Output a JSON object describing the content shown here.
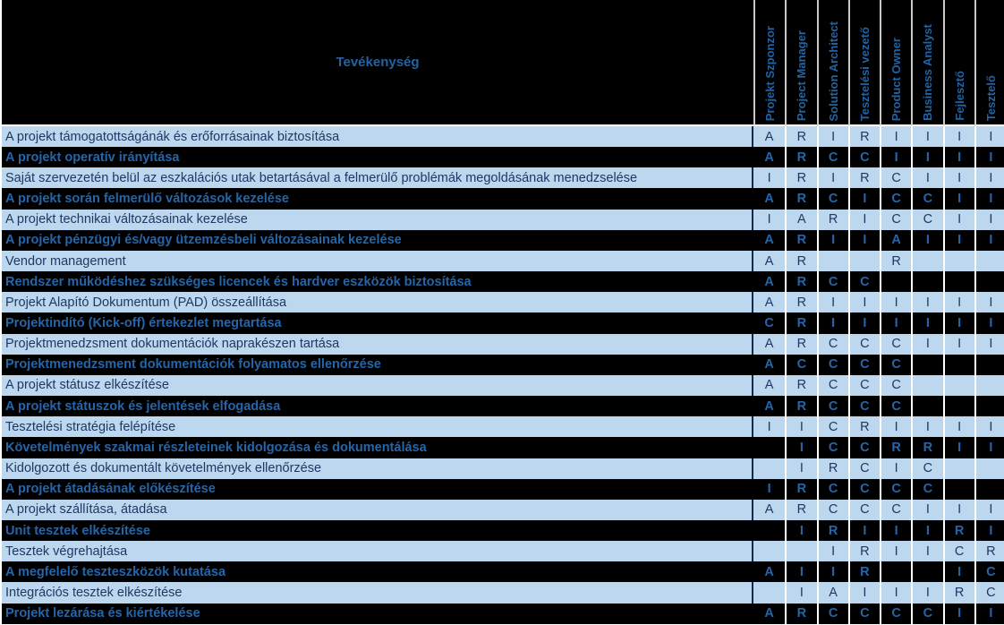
{
  "header": {
    "activity_label": "Tevékenység",
    "roles": [
      "Projekt Szponzor",
      "Project Manager",
      "Solution Architect",
      "Tesztelési vezető",
      "Product Owner",
      "Business Analyst",
      "Fejlesztő",
      "Tesztelő"
    ]
  },
  "raci_codes_used": [
    "A",
    "R",
    "C",
    "I"
  ],
  "colors": {
    "row_light_bg": "#BDD7EE",
    "row_dark_bg": "#000000",
    "text_on_light": "#1F3864",
    "text_on_dark": "#2565A8",
    "header_text": "#2163A4",
    "grid_line_body": "#FFFFFF",
    "grid_line_header": "#C9C9C9"
  },
  "matrix": {
    "rows": [
      {
        "activity": "A projekt támogatottságánák és erőforrásainak biztosítása",
        "values": [
          "A",
          "R",
          "I",
          "R",
          "I",
          "I",
          "I",
          "I"
        ]
      },
      {
        "activity": "A projekt operatív irányítása",
        "values": [
          "A",
          "R",
          "C",
          "C",
          "I",
          "I",
          "I",
          "I"
        ]
      },
      {
        "activity": "Saját szervezetén belül az eszkalációs utak betartásával a felmerülő problémák megoldásának menedzselése",
        "values": [
          "I",
          "R",
          "I",
          "R",
          "C",
          "I",
          "I",
          "I"
        ]
      },
      {
        "activity": "A projekt során felmerülő változások kezelése",
        "values": [
          "A",
          "R",
          "C",
          "I",
          "C",
          "C",
          "I",
          "I"
        ]
      },
      {
        "activity": "A projekt technikai változásainak kezelése",
        "values": [
          "I",
          "A",
          "R",
          "I",
          "C",
          "C",
          "I",
          "I"
        ]
      },
      {
        "activity": "A projekt pénzügyi és/vagy ützemzésbeli változásainak kezelése",
        "values": [
          "A",
          "R",
          "I",
          "I",
          "A",
          "I",
          "I",
          "I"
        ]
      },
      {
        "activity": "Vendor management",
        "values": [
          "A",
          "R",
          "",
          "",
          "R",
          "",
          "",
          ""
        ]
      },
      {
        "activity": "Rendszer működéshez szükséges licencek és hardver eszközök biztosítása",
        "values": [
          "A",
          "R",
          "C",
          "C",
          "",
          "",
          "",
          ""
        ]
      },
      {
        "activity": "Projekt Alapító Dokumentum (PAD) összeállítása",
        "values": [
          "A",
          "R",
          "I",
          "I",
          "I",
          "I",
          "I",
          "I"
        ]
      },
      {
        "activity": "Projektindító (Kick-off) értekezlet megtartása",
        "values": [
          "C",
          "R",
          "I",
          "I",
          "I",
          "I",
          "I",
          "I"
        ]
      },
      {
        "activity": "Projektmenedzsment dokumentációk naprakészen tartása",
        "values": [
          "A",
          "R",
          "C",
          "C",
          "C",
          "I",
          "I",
          "I"
        ]
      },
      {
        "activity": "Projektmenedzsment dokumentációk folyamatos ellenőrzése",
        "values": [
          "A",
          "C",
          "C",
          "C",
          "C",
          "",
          "",
          ""
        ]
      },
      {
        "activity": "A projekt státusz elkészítése",
        "values": [
          "A",
          "R",
          "C",
          "C",
          "C",
          "",
          "",
          ""
        ]
      },
      {
        "activity": "A projekt státuszok és jelentések elfogadása",
        "values": [
          "A",
          "R",
          "C",
          "C",
          "C",
          "",
          "",
          ""
        ]
      },
      {
        "activity": "Tesztelési stratégia felépítése",
        "values": [
          "I",
          "I",
          "C",
          "R",
          "I",
          "I",
          "I",
          "I"
        ]
      },
      {
        "activity": "Követelmények szakmai részleteinek kidolgozása és dokumentálása",
        "values": [
          "",
          "I",
          "C",
          "C",
          "R",
          "R",
          "I",
          "I"
        ]
      },
      {
        "activity": "Kidolgozott és dokumentált követelmények ellenőrzése",
        "values": [
          "",
          "I",
          "R",
          "C",
          "I",
          "C",
          "",
          ""
        ]
      },
      {
        "activity": "A projekt átadásának előkészítése",
        "values": [
          "I",
          "R",
          "C",
          "C",
          "C",
          "C",
          "",
          ""
        ]
      },
      {
        "activity": "A projekt szállítása, átadása",
        "values": [
          "A",
          "R",
          "C",
          "C",
          "C",
          "I",
          "I",
          "I"
        ]
      },
      {
        "activity": "Unit tesztek elkészítése",
        "values": [
          "",
          "I",
          "R",
          "I",
          "I",
          "I",
          "R",
          "I"
        ]
      },
      {
        "activity": "Tesztek végrehajtása",
        "values": [
          "",
          "",
          "I",
          "R",
          "I",
          "I",
          "C",
          "R"
        ]
      },
      {
        "activity": "A megfelelő teszteszközök kutatása",
        "values": [
          "A",
          "I",
          "I",
          "R",
          "",
          "",
          "I",
          "C"
        ]
      },
      {
        "activity": "Integrációs tesztek elkészítése",
        "values": [
          "",
          "I",
          "A",
          "I",
          "I",
          "I",
          "R",
          "C"
        ]
      },
      {
        "activity": "Projekt lezárása és kiértékelése",
        "values": [
          "A",
          "R",
          "C",
          "C",
          "C",
          "C",
          "I",
          "I"
        ]
      }
    ]
  }
}
